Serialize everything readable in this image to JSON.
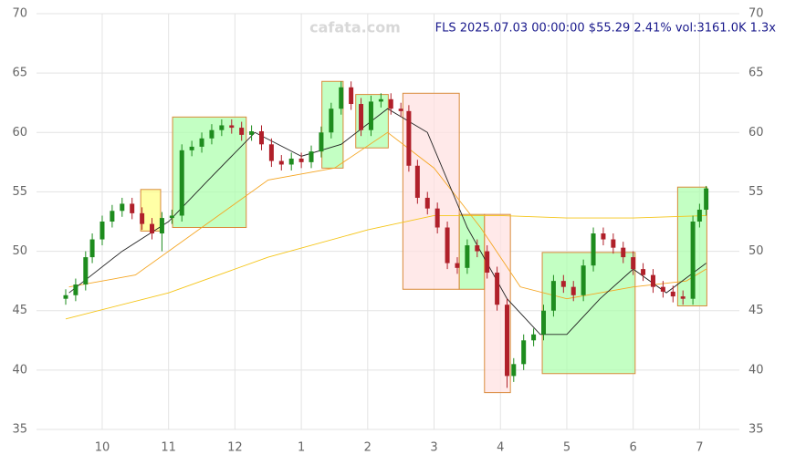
{
  "chart_data": {
    "type": "candlestick",
    "title": "FLS 2025.07.03 00:00:00 $55.29 2.41% vol:3161.0K 1.3x",
    "watermark": "cafata.com",
    "xlim": [
      9.01,
      19.6
    ],
    "ylim": [
      35,
      70
    ],
    "xticks": [
      {
        "value": 10,
        "label": "10"
      },
      {
        "value": 11,
        "label": "11"
      },
      {
        "value": 12,
        "label": "12"
      },
      {
        "value": 13,
        "label": "1"
      },
      {
        "value": 14,
        "label": "2"
      },
      {
        "value": 15,
        "label": "3"
      },
      {
        "value": 16,
        "label": "4"
      },
      {
        "value": 17,
        "label": "5"
      },
      {
        "value": 18,
        "label": "6"
      },
      {
        "value": 19,
        "label": "7"
      }
    ],
    "yticks": [
      35,
      40,
      45,
      50,
      55,
      60,
      65,
      70
    ],
    "grid": true,
    "up_color": "#1e8c1e",
    "down_color": "#b0202a",
    "x": [
      9.45,
      9.6,
      9.75,
      9.85,
      10.0,
      10.15,
      10.3,
      10.45,
      10.6,
      10.75,
      10.9,
      11.05,
      11.2,
      11.35,
      11.5,
      11.65,
      11.8,
      11.95,
      12.1,
      12.25,
      12.4,
      12.55,
      12.7,
      12.85,
      13.0,
      13.15,
      13.3,
      13.45,
      13.6,
      13.75,
      13.9,
      14.05,
      14.2,
      14.35,
      14.5,
      14.62,
      14.75,
      14.9,
      15.05,
      15.2,
      15.35,
      15.5,
      15.65,
      15.8,
      15.95,
      16.1,
      16.2,
      16.35,
      16.5,
      16.65,
      16.8,
      16.95,
      17.1,
      17.25,
      17.4,
      17.55,
      17.7,
      17.85,
      18.0,
      18.15,
      18.3,
      18.45,
      18.6,
      18.75,
      18.9,
      19.0,
      19.1
    ],
    "open": [
      46.0,
      46.3,
      47.2,
      49.5,
      51,
      52.5,
      53.4,
      54,
      53.2,
      52.3,
      51.5,
      52.8,
      53,
      58.5,
      58.8,
      59.5,
      60.2,
      60.6,
      60.4,
      59.8,
      60.1,
      59,
      57.6,
      57.3,
      57.8,
      57.5,
      58.4,
      60,
      62,
      63.8,
      62.4,
      60.2,
      62.6,
      62.8,
      62,
      61.8,
      57.2,
      54.5,
      53.6,
      52,
      49,
      48.6,
      50.5,
      50,
      48.2,
      45.5,
      39.5,
      40.5,
      42.5,
      43,
      45,
      47.5,
      47,
      46.3,
      48.8,
      51.5,
      51,
      50.3,
      49.5,
      48.5,
      48,
      47,
      46.6,
      46.2,
      46,
      52.5,
      53.5
    ],
    "high": [
      46.8,
      47.7,
      50.0,
      51.5,
      53.0,
      53.9,
      54.5,
      54.5,
      53.7,
      52.8,
      53.3,
      53.5,
      59.0,
      59.3,
      60.0,
      60.7,
      61.1,
      61.1,
      60.9,
      60.6,
      60.6,
      59.5,
      58.1,
      58.3,
      58.3,
      58.9,
      60.5,
      62.5,
      64.3,
      64.3,
      62.9,
      63.1,
      63.3,
      63.3,
      62.5,
      62.3,
      57.7,
      55.0,
      54.1,
      52.5,
      49.5,
      51.0,
      51.0,
      50.5,
      48.7,
      46.0,
      41.0,
      43.0,
      43.5,
      45.5,
      48.0,
      48.0,
      47.5,
      49.3,
      52.0,
      52.0,
      51.5,
      50.8,
      50.0,
      49.0,
      48.5,
      47.5,
      47.1,
      46.7,
      53.0,
      54.0,
      55.5
    ],
    "low": [
      45.5,
      45.8,
      46.7,
      49.0,
      50.5,
      52.0,
      52.9,
      52.7,
      51.8,
      51.0,
      50.0,
      52.3,
      52.5,
      58.0,
      58.3,
      59.0,
      59.7,
      59.9,
      59.3,
      59.3,
      58.5,
      57.1,
      56.8,
      56.8,
      57.0,
      57.0,
      57.9,
      59.5,
      61.5,
      61.9,
      59.7,
      59.7,
      62.1,
      61.5,
      61.3,
      56.7,
      54.0,
      53.1,
      51.5,
      48.5,
      48.1,
      48.1,
      49.5,
      47.7,
      45.0,
      38.5,
      39.0,
      40.0,
      42.0,
      42.5,
      44.5,
      46.5,
      45.8,
      45.8,
      48.3,
      50.5,
      49.8,
      49.0,
      48.0,
      47.5,
      46.5,
      46.1,
      45.7,
      45.5,
      45.5,
      52.0,
      53.0
    ],
    "close": [
      46.3,
      47.2,
      49.5,
      51,
      52.5,
      53.4,
      54,
      53.2,
      52.3,
      51.5,
      52.8,
      53,
      58.5,
      58.8,
      59.5,
      60.2,
      60.6,
      60.4,
      59.8,
      60.1,
      59,
      57.6,
      57.3,
      57.8,
      57.5,
      58.4,
      60,
      62,
      63.8,
      62.4,
      60.2,
      62.6,
      62.8,
      62,
      61.8,
      57.2,
      54.5,
      53.6,
      52,
      49,
      48.6,
      50.5,
      50,
      48.2,
      45.5,
      39.5,
      40.5,
      42.5,
      43,
      45,
      47.5,
      47,
      46.3,
      48.8,
      51.5,
      51,
      50.3,
      49.5,
      48.5,
      48,
      47,
      46.6,
      46.2,
      46,
      52.5,
      53.5,
      55.29
    ],
    "lines": [
      {
        "color": "#f5c518",
        "x": [
          9.45,
          11,
          12.5,
          14,
          15,
          16,
          17,
          18,
          19.1
        ],
        "values": [
          44.3,
          46.5,
          49.5,
          51.8,
          53,
          53,
          52.8,
          52.8,
          53
        ]
      },
      {
        "color": "#f5a623",
        "x": [
          9.5,
          10.5,
          11.5,
          12.5,
          13.5,
          14.3,
          15,
          15.7,
          16.3,
          17,
          17.5,
          18,
          18.8,
          19.1
        ],
        "values": [
          47,
          48,
          52,
          56,
          57,
          60,
          57,
          52,
          47,
          46,
          46.5,
          47,
          47.5,
          48.5
        ]
      },
      {
        "color": "#222222",
        "x": [
          9.5,
          10.3,
          11,
          11.6,
          12.3,
          13,
          13.6,
          14.3,
          14.9,
          15.5,
          16.1,
          16.6,
          17,
          17.5,
          18,
          18.5,
          19.1
        ],
        "values": [
          46.5,
          50,
          52.5,
          56,
          60,
          58,
          59,
          62,
          60,
          52,
          46,
          43,
          43,
          46,
          48.5,
          46.5,
          49
        ]
      }
    ],
    "boxes": [
      {
        "color": "#ffff80",
        "x": [
          10.58,
          10.88
        ],
        "y": [
          51.7,
          55.2
        ]
      },
      {
        "color": "#aaffaa",
        "x": [
          11.06,
          12.17
        ],
        "y": [
          52,
          61.3
        ]
      },
      {
        "color": "#aaffaa",
        "x": [
          13.31,
          13.63
        ],
        "y": [
          57,
          64.3
        ]
      },
      {
        "color": "#aaffaa",
        "x": [
          13.82,
          14.31
        ],
        "y": [
          58.7,
          63.2
        ]
      },
      {
        "color": "#ffe0e0",
        "x": [
          14.53,
          15.38
        ],
        "y": [
          46.8,
          63.3
        ]
      },
      {
        "color": "#aaffaa",
        "x": [
          15.38,
          15.76
        ],
        "y": [
          46.8,
          53.1
        ]
      },
      {
        "color": "#ffe0e0",
        "x": [
          15.76,
          16.15
        ],
        "y": [
          38.1,
          53.1
        ]
      },
      {
        "color": "#aaffaa",
        "x": [
          16.63,
          18.03
        ],
        "y": [
          39.7,
          49.9
        ]
      },
      {
        "color": "#aaffaa",
        "x": [
          18.67,
          19.11
        ],
        "y": [
          45.4,
          55.4
        ]
      }
    ]
  }
}
